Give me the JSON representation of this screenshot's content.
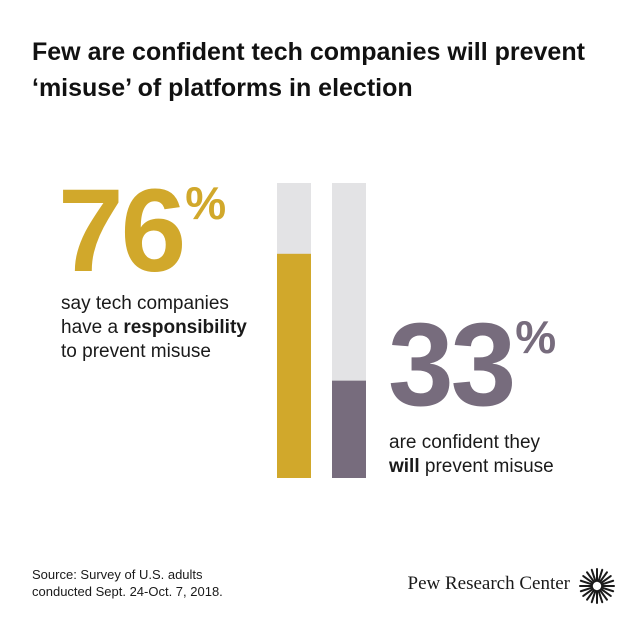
{
  "title": "Few are confident tech companies will prevent ‘misuse’ of platforms in election",
  "colors": {
    "gold": "#d1a82b",
    "purple": "#776c7d",
    "track": "#e3e3e5"
  },
  "stat1": {
    "number": "76",
    "percent_sign": "%",
    "desc_pre_line1": "say tech companies",
    "desc_pre_line2": "have a ",
    "desc_bold": "responsibility",
    "desc_line3": "to prevent misuse"
  },
  "stat2": {
    "number": "33",
    "percent_sign": "%",
    "desc_line1": "are confident they",
    "desc_bold": "will",
    "desc_post": " prevent misuse"
  },
  "chart_data": {
    "type": "bar",
    "categories": [
      "Tech companies have a responsibility to prevent misuse",
      "Confident they will prevent misuse"
    ],
    "values": [
      76,
      33
    ],
    "ylim": [
      0,
      100
    ],
    "orientation": "vertical",
    "grid": false,
    "legend": "none"
  },
  "source": {
    "line1": "Source: Survey of U.S. adults",
    "line2": "conducted Sept. 24-Oct. 7, 2018."
  },
  "brand": "Pew Research Center",
  "logo_icon": "pew-sunburst-icon"
}
